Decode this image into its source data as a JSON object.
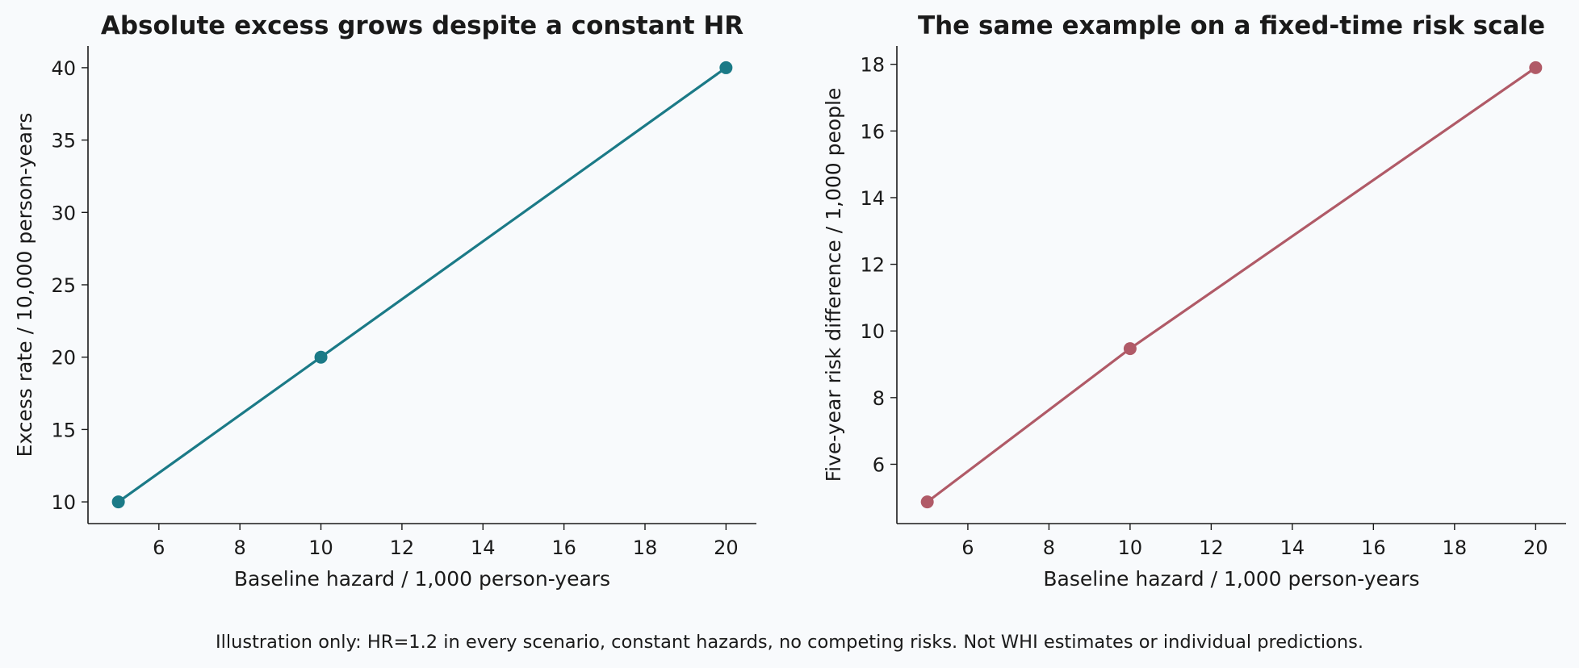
{
  "caption": "Illustration only: HR=1.2 in every scenario, constant hazards, no competing risks. Not WHI estimates or individual predictions.",
  "chart_data": [
    {
      "type": "line",
      "title": "Absolute excess grows despite a constant HR",
      "xlabel": "Baseline hazard / 1,000 person-years",
      "ylabel": "Excess rate / 10,000 person-years",
      "x": [
        5,
        10,
        20
      ],
      "series": [
        {
          "values": [
            10,
            20,
            40
          ],
          "color": "#1b7a87"
        }
      ],
      "xlim": [
        4.25,
        20.75
      ],
      "ylim": [
        8.5,
        41.5
      ],
      "xticks": [
        6,
        8,
        10,
        12,
        14,
        16,
        18,
        20
      ],
      "yticks": [
        10,
        15,
        20,
        25,
        30,
        35,
        40
      ],
      "grid": false,
      "markers": true
    },
    {
      "type": "line",
      "title": "The same example on a fixed-time risk scale",
      "xlabel": "Baseline hazard / 1,000 person-years",
      "ylabel": "Five-year risk difference / 1,000 people",
      "x": [
        5,
        10,
        20
      ],
      "series": [
        {
          "values": [
            4.87,
            9.47,
            17.9
          ],
          "color": "#b05a67"
        }
      ],
      "xlim": [
        4.25,
        20.75
      ],
      "ylim": [
        4.22,
        18.55
      ],
      "xticks": [
        6,
        8,
        10,
        12,
        14,
        16,
        18,
        20
      ],
      "yticks": [
        6,
        8,
        10,
        12,
        14,
        16,
        18
      ],
      "grid": false,
      "markers": true
    }
  ]
}
